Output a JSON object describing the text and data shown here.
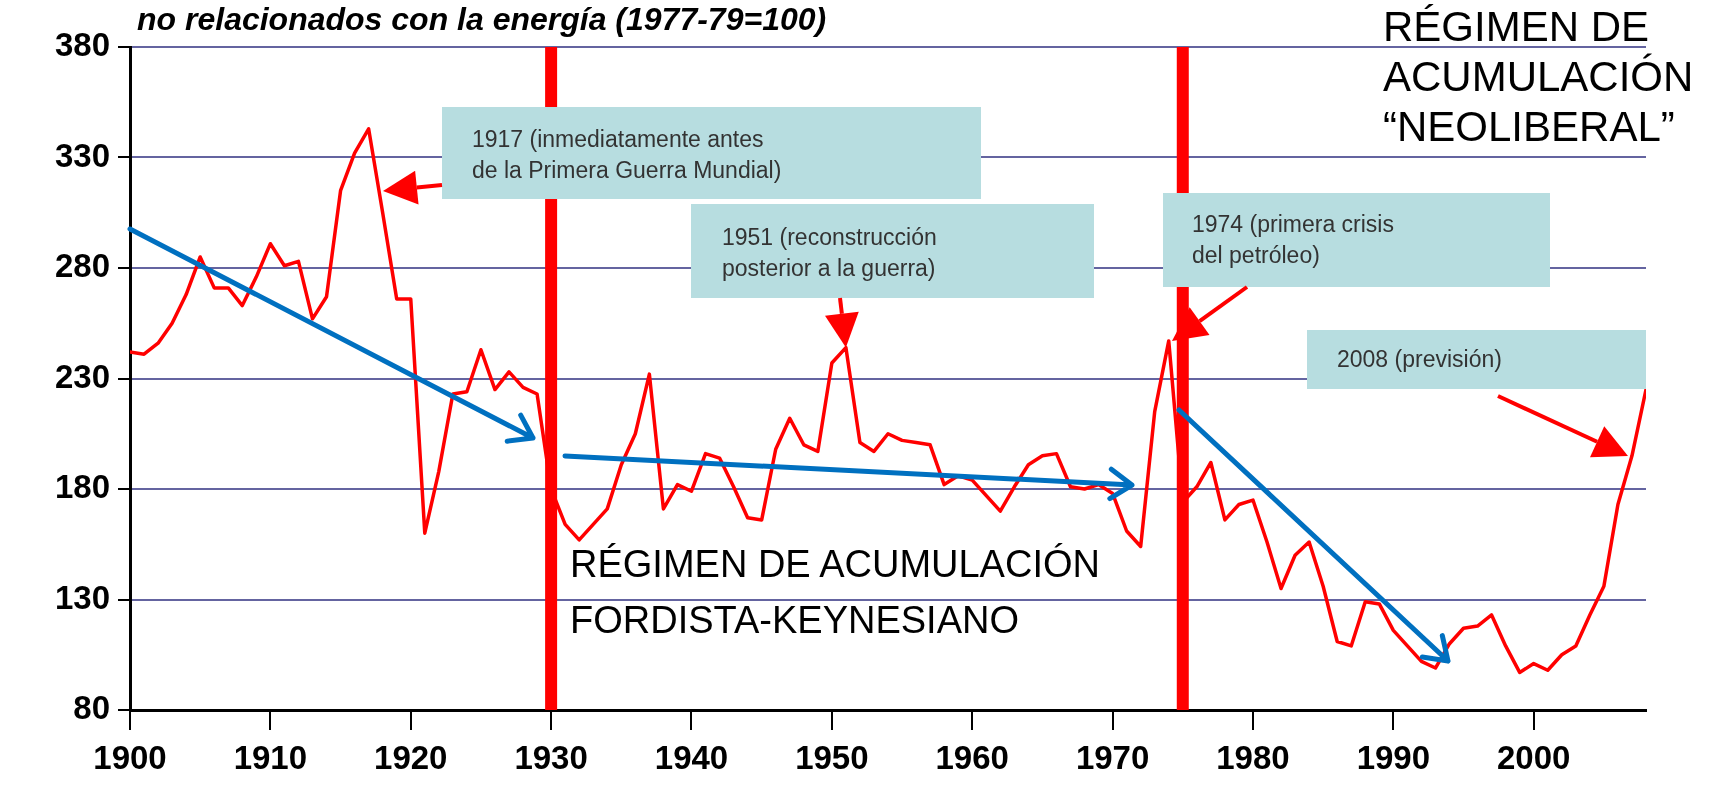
{
  "chart_data": {
    "type": "line",
    "title": "no relacionados con la energía (1977-79=100)",
    "x": [
      1900,
      1901,
      1902,
      1903,
      1904,
      1905,
      1906,
      1907,
      1908,
      1909,
      1910,
      1911,
      1912,
      1913,
      1914,
      1915,
      1916,
      1917,
      1918,
      1919,
      1920,
      1921,
      1922,
      1923,
      1924,
      1925,
      1926,
      1927,
      1928,
      1929,
      1930,
      1931,
      1932,
      1933,
      1934,
      1935,
      1936,
      1937,
      1938,
      1939,
      1940,
      1941,
      1942,
      1943,
      1944,
      1945,
      1946,
      1947,
      1948,
      1949,
      1950,
      1951,
      1952,
      1953,
      1954,
      1955,
      1956,
      1957,
      1958,
      1959,
      1960,
      1961,
      1962,
      1963,
      1964,
      1965,
      1966,
      1967,
      1968,
      1969,
      1970,
      1971,
      1972,
      1973,
      1974,
      1975,
      1976,
      1977,
      1978,
      1979,
      1980,
      1981,
      1982,
      1983,
      1984,
      1985,
      1986,
      1987,
      1988,
      1989,
      1990,
      1991,
      1992,
      1993,
      1994,
      1995,
      1996,
      1997,
      1998,
      1999,
      2000,
      2001,
      2002,
      2003,
      2004,
      2005,
      2006,
      2007,
      2008
    ],
    "series": [
      {
        "color": "#ff0000",
        "values": [
          242,
          241,
          246,
          255,
          268,
          285,
          271,
          271,
          263,
          276,
          291,
          281,
          283,
          257,
          267,
          315,
          332,
          343,
          305,
          266,
          266,
          160,
          188,
          223,
          224,
          243,
          225,
          233,
          226,
          223,
          180,
          164,
          157,
          164,
          171,
          191,
          205,
          232,
          171,
          182,
          179,
          196,
          194,
          181,
          167,
          166,
          198,
          212,
          200,
          197,
          237,
          244,
          201,
          197,
          205,
          202,
          201,
          200,
          182,
          186,
          184,
          177,
          170,
          181,
          191,
          195,
          196,
          181,
          180,
          182,
          178,
          161,
          154,
          215,
          247,
          174,
          181,
          192,
          166,
          173,
          175,
          156,
          135,
          150,
          156,
          136,
          111,
          109,
          129,
          128,
          116,
          109,
          102,
          99,
          110,
          117,
          118,
          123,
          109,
          97,
          101,
          98,
          105,
          109,
          123,
          136,
          173,
          195,
          225
        ]
      }
    ],
    "xlim": [
      1900,
      2008
    ],
    "xticks": [
      1900,
      1910,
      1920,
      1930,
      1940,
      1950,
      1960,
      1970,
      1980,
      1990,
      2000
    ],
    "ylim": [
      80,
      380
    ],
    "yticks": [
      80,
      130,
      180,
      230,
      280,
      330,
      380
    ],
    "grid": "y",
    "legend": false,
    "marker": "none",
    "line_style": "solid",
    "ref_lines": [
      {
        "axis": "x",
        "value": 1930,
        "color": "#ff0000"
      },
      {
        "axis": "x",
        "value": 1975,
        "color": "#ff0000"
      }
    ],
    "annotations": [
      "1917 (inmediatamente antes\nde la Primera Guerra Mundial)",
      {
        "text": "1951 (reconstrucción\nposterior a la guerra)",
        "x": 1951,
        "y": 244
      },
      "1974 (primera crisis\ndel petróleo)",
      "2008 (previsión)",
      "RÉGIMEN DE ACUMULACIÓN\nFORDISTA-KEYNESIANO",
      "RÉGIMEN DE\nACUMULACIÓN\n“NEOLIBERAL”"
    ]
  }
}
